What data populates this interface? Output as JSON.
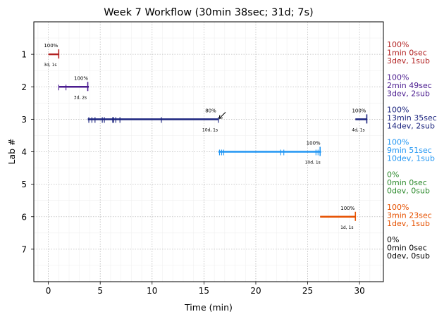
{
  "chart_data": {
    "type": "timeline",
    "title": "Week 7 Workflow (30min 38sec; 31d; 7s)",
    "xlabel": "Time (min)",
    "ylabel": "Lab #",
    "xlim": [
      -1.4,
      32.3
    ],
    "ylim": [
      8,
      0
    ],
    "x_ticks": [
      0,
      5,
      10,
      15,
      20,
      25,
      30
    ],
    "y_ticks": [
      1,
      2,
      3,
      4,
      5,
      6,
      7
    ],
    "grid": true,
    "labs": [
      {
        "lab": 1,
        "color": "#b22222",
        "segments": [
          {
            "start": 0.0,
            "end": 1.0,
            "pct_label": "100%",
            "sub_label": "3d, 1s"
          }
        ],
        "ticks": [
          1.0
        ],
        "summary": [
          "100%",
          "1min 0sec",
          "3dev, 1sub"
        ]
      },
      {
        "lab": 2,
        "color": "#4b1c8f",
        "segments": [
          {
            "start": 1.0,
            "end": 3.9,
            "pct_label": "100%",
            "sub_label": "3d, 2s"
          }
        ],
        "ticks": [
          1.0,
          1.7,
          3.8
        ],
        "summary": [
          "100%",
          "2min 49sec",
          "3dev, 2sub"
        ]
      },
      {
        "lab": 3,
        "color": "#1a237e",
        "segments": [
          {
            "start": 3.8,
            "end": 16.4,
            "pct_label": "80%",
            "sub_label": "10d, 1s"
          },
          {
            "start": 29.6,
            "end": 30.7,
            "pct_label": "100%",
            "sub_label": "4d, 1s"
          }
        ],
        "ticks": [
          3.9,
          4.2,
          4.5,
          5.2,
          5.4,
          6.2,
          6.3,
          6.5,
          6.9,
          10.9,
          16.4,
          30.7
        ],
        "summary": [
          "100%",
          "13min 35sec",
          "14dev, 2sub"
        ]
      },
      {
        "lab": 4,
        "color": "#2196f3",
        "segments": [
          {
            "start": 16.4,
            "end": 26.3,
            "pct_label": "100%",
            "sub_label": "10d, 1s"
          }
        ],
        "ticks": [
          16.5,
          16.7,
          16.9,
          22.4,
          22.7,
          25.8,
          26.0,
          26.2
        ],
        "summary": [
          "100%",
          "9min 51sec",
          "10dev, 1sub"
        ]
      },
      {
        "lab": 5,
        "color": "#2e8b2e",
        "segments": [],
        "ticks": [],
        "summary": [
          "0%",
          "0min 0sec",
          "0dev, 0sub"
        ]
      },
      {
        "lab": 6,
        "color": "#e65100",
        "segments": [
          {
            "start": 26.2,
            "end": 29.6,
            "pct_label": "100%",
            "sub_label": "1d, 1s"
          }
        ],
        "ticks": [
          29.6
        ],
        "summary": [
          "100%",
          "3min 23sec",
          "1dev, 1sub"
        ]
      },
      {
        "lab": 7,
        "color": "#000000",
        "segments": [],
        "ticks": [],
        "summary": [
          "0%",
          "0min 0sec",
          "0dev, 0sub"
        ]
      }
    ],
    "annotations": [
      {
        "type": "arrow",
        "lab": 3,
        "x": 16.4,
        "direction": "down-left"
      }
    ]
  }
}
